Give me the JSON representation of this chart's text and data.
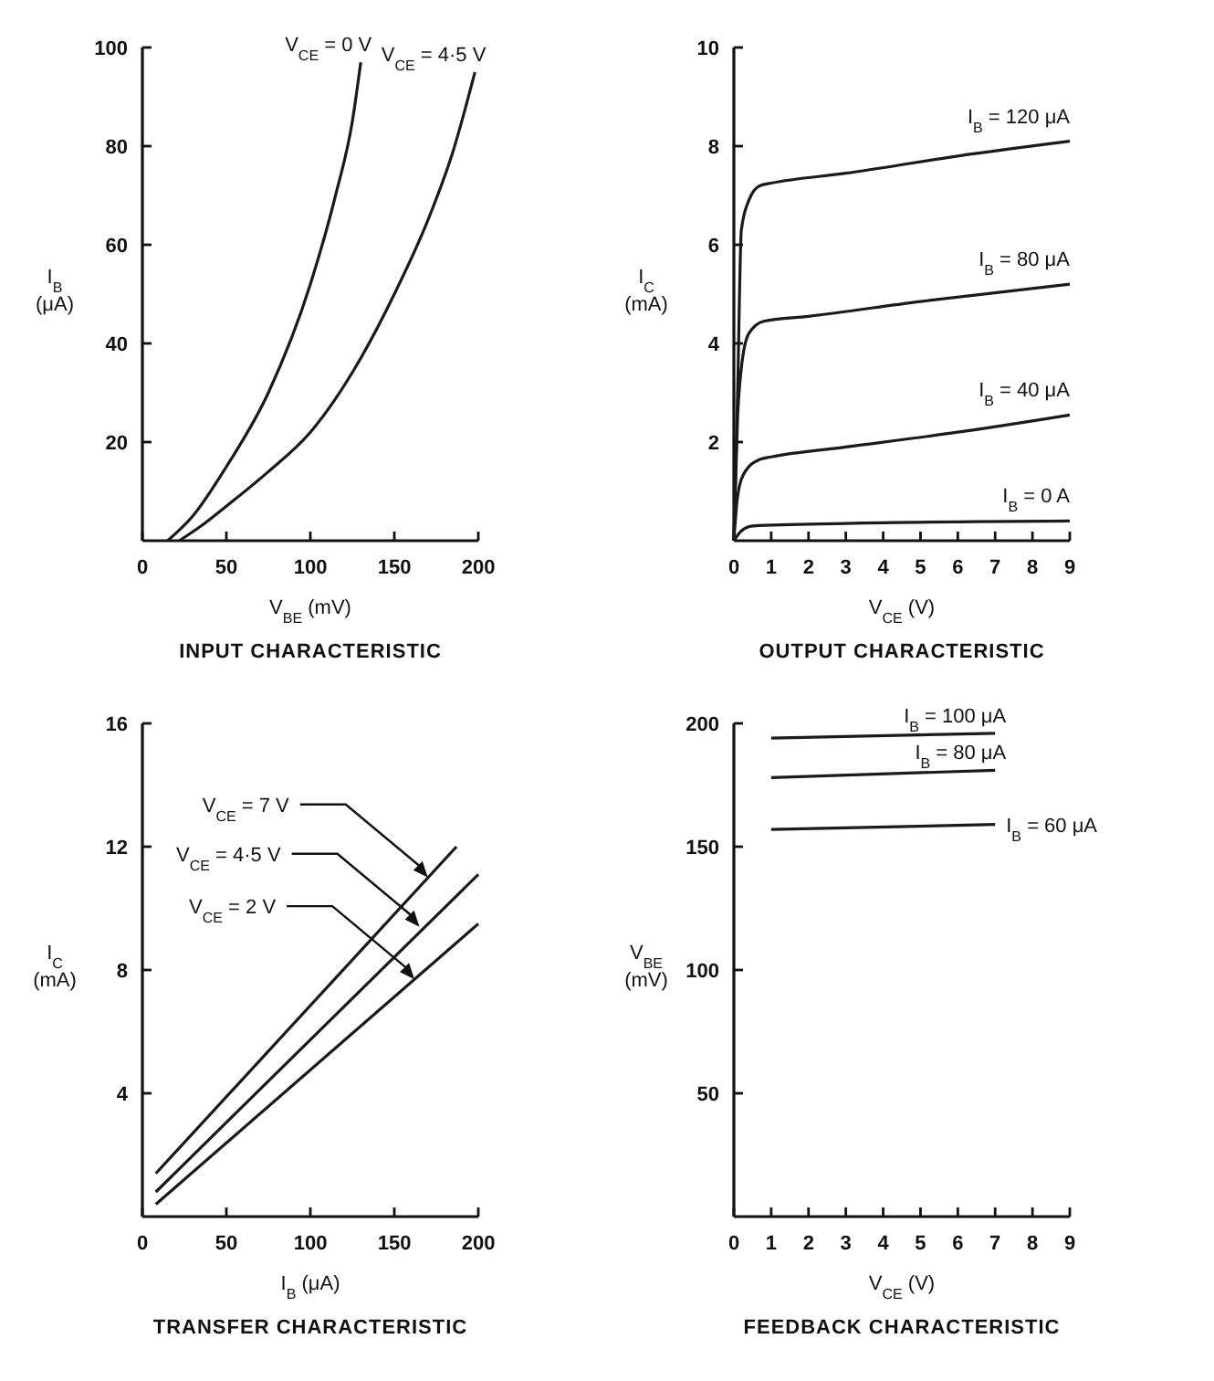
{
  "chart_data": [
    {
      "type": "line",
      "title": "INPUT CHARACTERISTIC",
      "xlabel": "V$_{BE}$ (mV)",
      "ylabel": "I$_{B}$ (μA)",
      "xlim": [
        0,
        200
      ],
      "ylim": [
        0,
        100
      ],
      "xticks": [
        0,
        50,
        100,
        150,
        200
      ],
      "yticks": [
        20,
        40,
        60,
        80,
        100
      ],
      "grid": false,
      "marker": "none",
      "line_style": "solid",
      "series": [
        {
          "name": "V$_{CE}$ = 0 V",
          "color": "#1a1a1a",
          "x": [
            15,
            30,
            50,
            75,
            100,
            115,
            125,
            130
          ],
          "values": [
            0,
            5,
            15,
            30,
            52,
            70,
            85,
            97
          ]
        },
        {
          "name": "V$_{CE}$ = 4·5 V",
          "color": "#1a1a1a",
          "x": [
            22,
            35,
            50,
            75,
            100,
            130,
            150,
            170,
            185,
            198
          ],
          "values": [
            0,
            3,
            7,
            14,
            22,
            37,
            50,
            65,
            79,
            95
          ]
        }
      ]
    },
    {
      "type": "line",
      "title": "OUTPUT CHARACTERISTIC",
      "xlabel": "V$_{CE}$ (V)",
      "ylabel": "I$_{C}$ (mA)",
      "xlim": [
        0,
        9
      ],
      "ylim": [
        0,
        10
      ],
      "xticks": [
        0,
        1,
        2,
        3,
        4,
        5,
        6,
        7,
        8,
        9
      ],
      "yticks": [
        2,
        4,
        6,
        8,
        10
      ],
      "grid": false,
      "marker": "none",
      "line_style": "solid",
      "series": [
        {
          "name": "I$_{B}$ = 120 μA",
          "color": "#1a1a1a",
          "x": [
            0,
            0.1,
            0.2,
            0.4,
            0.7,
            1,
            3,
            6,
            9
          ],
          "values": [
            0,
            3,
            6.3,
            6.9,
            7.2,
            7.25,
            7.45,
            7.8,
            8.1
          ]
        },
        {
          "name": "I$_{B}$ = 80 μA",
          "color": "#1a1a1a",
          "x": [
            0,
            0.1,
            0.2,
            0.4,
            0.8,
            2,
            5,
            9
          ],
          "values": [
            0,
            2.5,
            3.5,
            4.2,
            4.45,
            4.55,
            4.85,
            5.2
          ]
        },
        {
          "name": "I$_{B}$ = 40 μA",
          "color": "#1a1a1a",
          "x": [
            0,
            0.1,
            0.3,
            0.7,
            1,
            3,
            6,
            9
          ],
          "values": [
            0,
            0.9,
            1.4,
            1.65,
            1.7,
            1.9,
            2.2,
            2.55
          ]
        },
        {
          "name": "I$_{B}$ = 0 A",
          "color": "#1a1a1a",
          "x": [
            0,
            0.2,
            0.5,
            3,
            9
          ],
          "values": [
            0,
            0.2,
            0.3,
            0.35,
            0.4
          ]
        }
      ]
    },
    {
      "type": "line",
      "title": "TRANSFER CHARACTERISTIC",
      "xlabel": "I$_{B}$ (μA)",
      "ylabel": "I$_{C}$ (mA)",
      "xlim": [
        0,
        200
      ],
      "ylim": [
        0,
        16
      ],
      "xticks": [
        0,
        50,
        100,
        150,
        200
      ],
      "yticks": [
        4,
        8,
        12,
        16
      ],
      "grid": false,
      "marker": "none",
      "line_style": "solid",
      "series": [
        {
          "color": "#1a1a1a",
          "x": [
            8,
            187
          ],
          "values": [
            1.4,
            12
          ]
        },
        {
          "color": "#1a1a1a",
          "x": [
            8,
            200
          ],
          "values": [
            0.8,
            11.1
          ]
        },
        {
          "color": "#1a1a1a",
          "x": [
            8,
            200
          ],
          "values": [
            0.4,
            9.5
          ]
        }
      ],
      "annotations": [
        {
          "text": "V$_{CE}$ = 7 V",
          "x": 170,
          "y": 11
        },
        {
          "text": "V$_{CE}$ = 4·5 V",
          "x": 165,
          "y": 9.4
        },
        {
          "text": "V$_{CE}$ = 2 V",
          "x": 162,
          "y": 7.7
        }
      ]
    },
    {
      "type": "line",
      "title": "FEEDBACK CHARACTERISTIC",
      "xlabel": "V$_{CE}$ (V)",
      "ylabel": "V$_{BE}$ (mV)",
      "xlim": [
        0,
        9
      ],
      "ylim": [
        0,
        200
      ],
      "xticks": [
        0,
        1,
        2,
        3,
        4,
        5,
        6,
        7,
        8,
        9
      ],
      "yticks": [
        50,
        100,
        150,
        200
      ],
      "grid": false,
      "marker": "none",
      "line_style": "solid",
      "series": [
        {
          "name": "I$_{B}$ = 100 μA",
          "color": "#1a1a1a",
          "x": [
            1,
            7
          ],
          "values": [
            194,
            196
          ]
        },
        {
          "name": "I$_{B}$ = 80 μA",
          "color": "#1a1a1a",
          "x": [
            1,
            7
          ],
          "values": [
            178,
            181
          ]
        },
        {
          "name": "I$_{B}$ = 60 μA",
          "color": "#1a1a1a",
          "x": [
            1,
            7
          ],
          "values": [
            157,
            159
          ]
        }
      ]
    }
  ]
}
